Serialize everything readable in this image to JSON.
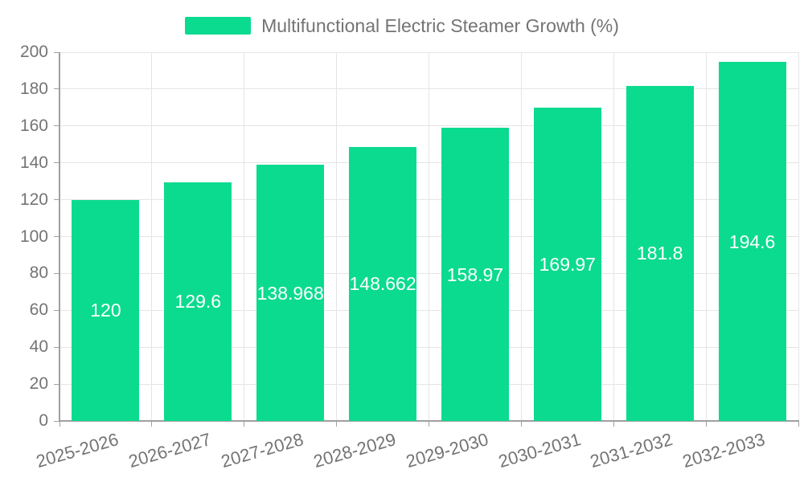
{
  "chart_data": {
    "type": "bar",
    "legend_label": "Multifunctional Electric Steamer Growth (%)",
    "legend_position": "top-center",
    "categories": [
      "2025-2026",
      "2026-2027",
      "2027-2028",
      "2028-2029",
      "2029-2030",
      "2030-2031",
      "2031-2032",
      "2032-2033"
    ],
    "values": [
      120,
      129.6,
      138.968,
      148.662,
      158.97,
      169.97,
      181.8,
      194.6
    ],
    "bar_labels": [
      "120",
      "129.6",
      "138.968",
      "148.662",
      "158.97",
      "169.97",
      "181.8",
      "194.6"
    ],
    "title": "",
    "xlabel": "",
    "ylabel": "",
    "ylim": [
      0,
      200
    ],
    "yticks": [
      0,
      20,
      40,
      60,
      80,
      100,
      120,
      140,
      160,
      180,
      200
    ],
    "grid": true,
    "x_tick_rotation_deg": -16,
    "colors": {
      "bar": "#0bdb8f",
      "bar_label": "#ffffff",
      "grid": "#e5e5e5",
      "axis": "#a0a0a0",
      "tick_text": "#747474",
      "legend_text": "#747474",
      "background": "#ffffff"
    }
  }
}
